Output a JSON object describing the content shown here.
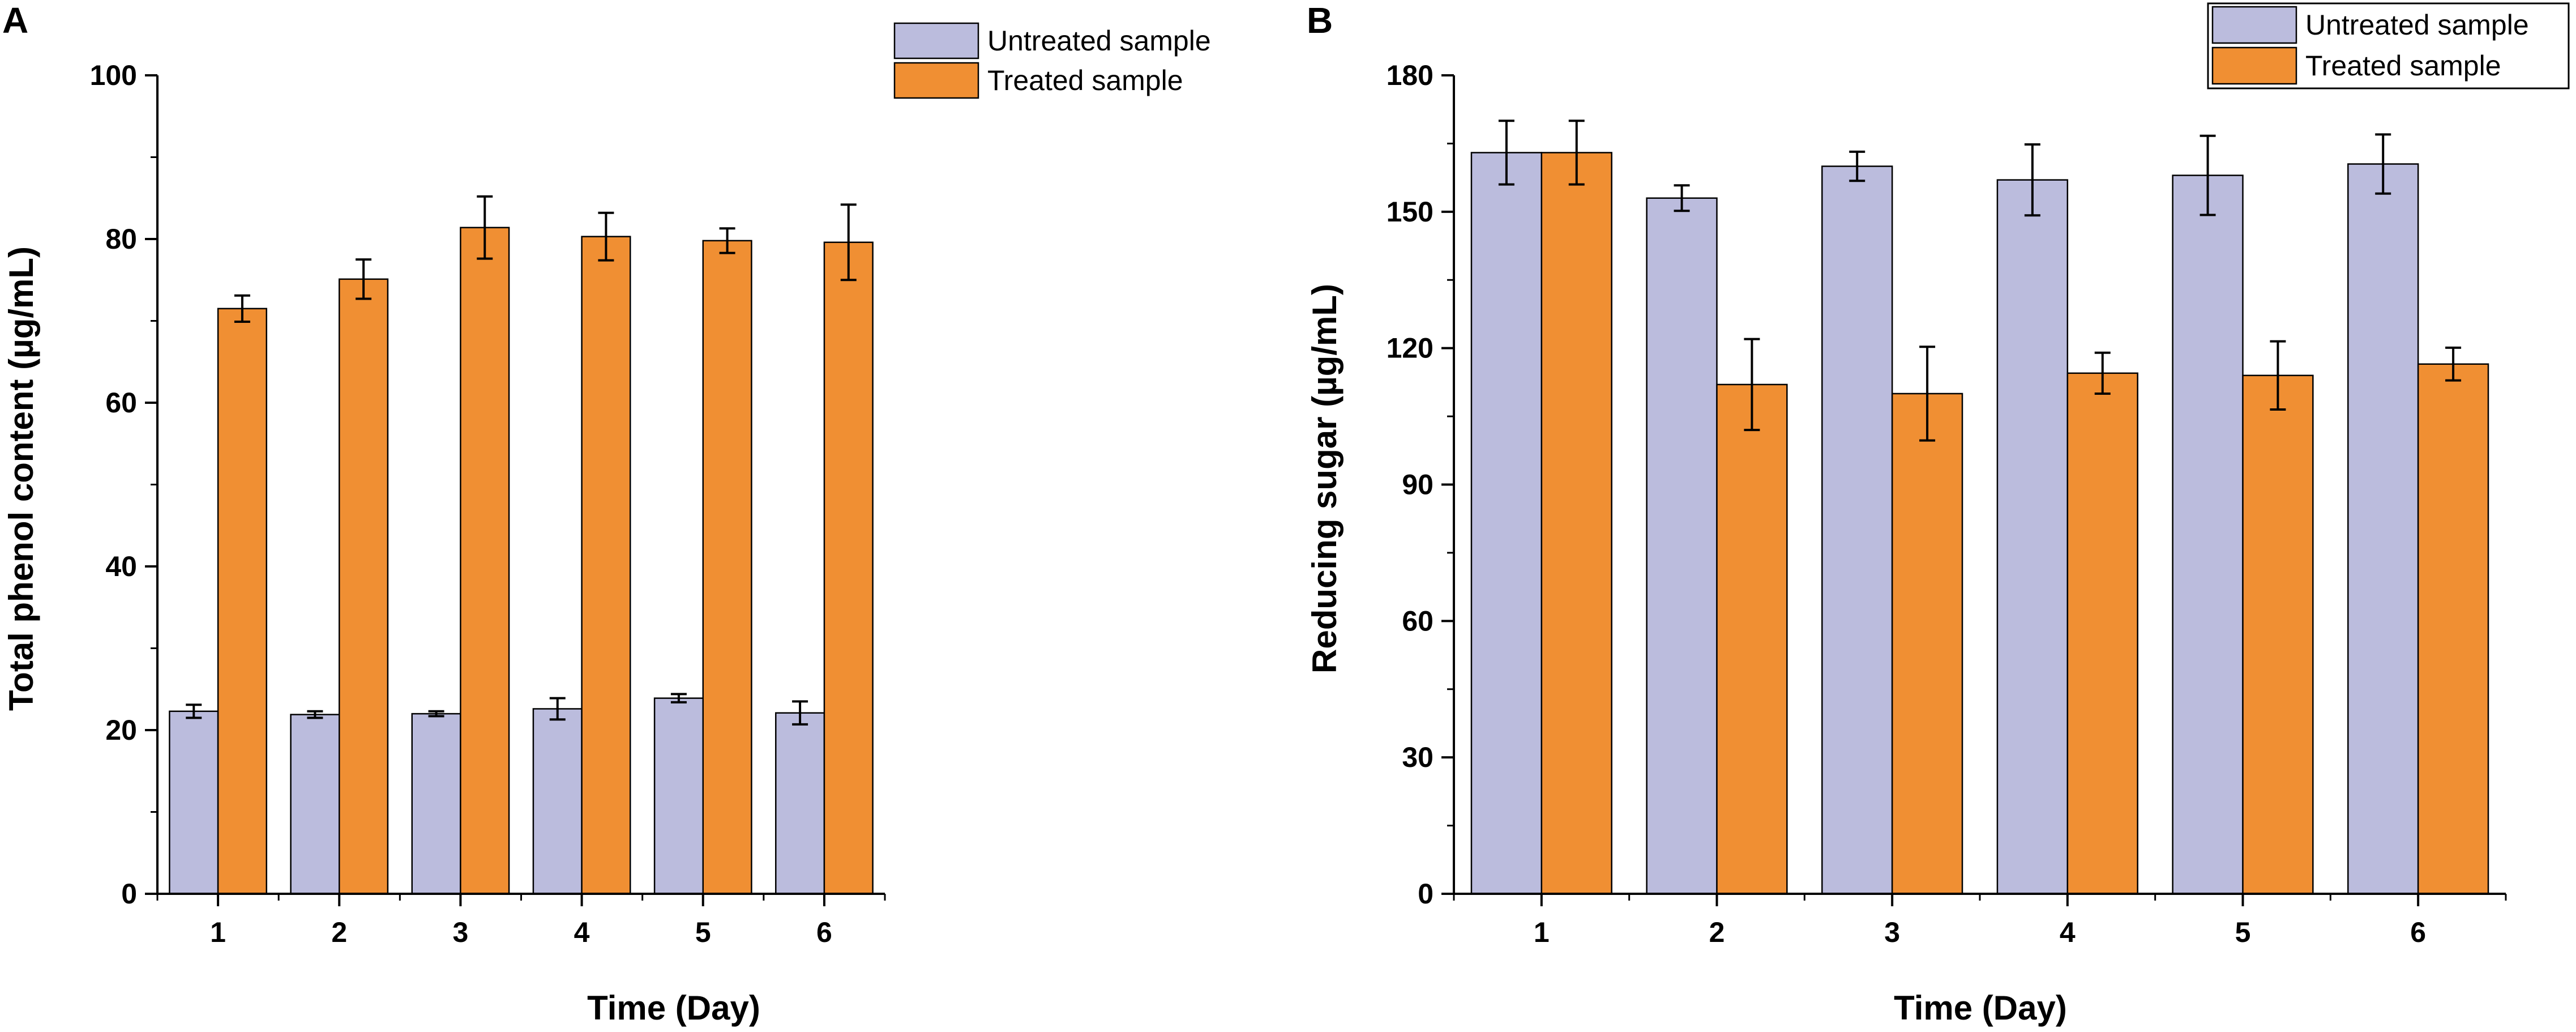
{
  "chart_data": [
    {
      "panel": "A",
      "type": "bar",
      "title": "",
      "xlabel": "Time (Day)",
      "ylabel": "Total phenol content (µg/mL)",
      "categories": [
        "1",
        "2",
        "3",
        "4",
        "5",
        "6"
      ],
      "ylim": [
        0,
        100
      ],
      "yticks": [
        "0",
        "20",
        "40",
        "60",
        "80",
        "100"
      ],
      "grid": false,
      "legend_position": "top-right",
      "series": [
        {
          "name": "Untreated sample",
          "color": "#bbbcdd",
          "values": [
            22.3,
            21.9,
            22.0,
            22.6,
            23.9,
            22.1
          ],
          "errors": [
            0.8,
            0.4,
            0.3,
            1.3,
            0.5,
            1.4
          ]
        },
        {
          "name": "Treated sample",
          "color": "#f08f33",
          "values": [
            71.5,
            75.1,
            81.4,
            80.3,
            79.8,
            79.6
          ],
          "errors": [
            1.6,
            2.4,
            3.8,
            2.9,
            1.5,
            4.6
          ]
        }
      ]
    },
    {
      "panel": "B",
      "type": "bar",
      "title": "",
      "xlabel": "Time (Day)",
      "ylabel": "Reducing sugar (µg/mL)",
      "categories": [
        "1",
        "2",
        "3",
        "4",
        "5",
        "6"
      ],
      "ylim": [
        0,
        180
      ],
      "yticks": [
        "0",
        "30",
        "60",
        "90",
        "120",
        "150",
        "180"
      ],
      "grid": false,
      "legend_position": "top-right",
      "series": [
        {
          "name": "Untreated sample",
          "color": "#bbbcdd",
          "values": [
            163.0,
            153.0,
            160.0,
            157.0,
            158.0,
            160.5
          ],
          "errors": [
            7.0,
            2.8,
            3.2,
            7.8,
            8.7,
            6.5
          ]
        },
        {
          "name": "Treated sample",
          "color": "#f08f33",
          "values": [
            163.0,
            112.0,
            110.0,
            114.5,
            114.0,
            116.5
          ],
          "errors": [
            7.0,
            10.0,
            10.3,
            4.5,
            7.5,
            3.6
          ]
        }
      ]
    }
  ]
}
